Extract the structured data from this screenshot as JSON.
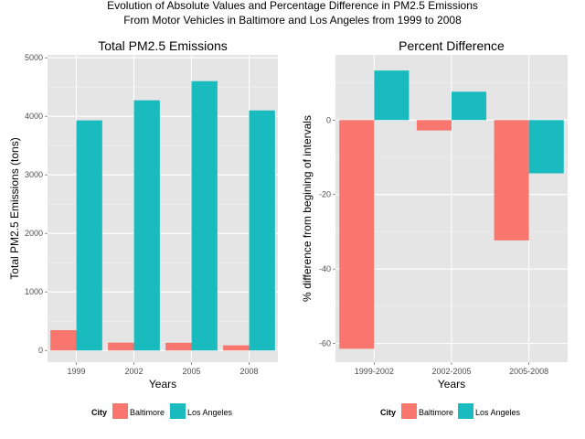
{
  "figure": {
    "title_line1": "Evolution of Absolute Values and Percentage Difference in PM2.5 Emissions",
    "title_line2": "From Motor Vehicles in Baltimore and Los Angeles from 1999 to 2008"
  },
  "colors": {
    "Baltimore": "#F8766D",
    "Los Angeles": "#19BBBE",
    "panel_bg": "#E5E5E5",
    "grid_major": "#FFFFFF",
    "grid_minor": "#F2F2F2"
  },
  "chart_data": [
    {
      "type": "bar",
      "title": "Total PM2.5 Emissions",
      "xlabel": "Years",
      "ylabel": "Total PM2.5 Emissions (tons)",
      "categories": [
        "1999",
        "2002",
        "2005",
        "2008"
      ],
      "series": [
        {
          "name": "Baltimore",
          "values": [
            347,
            134,
            131,
            88
          ]
        },
        {
          "name": "Los Angeles",
          "values": [
            3931,
            4274,
            4601,
            4101
          ]
        }
      ],
      "ylim": [
        -200,
        5050
      ],
      "yticks": [
        0,
        1000,
        2000,
        3000,
        4000,
        5000
      ],
      "grid": true,
      "legend": {
        "position": "bottom",
        "title": "City",
        "entries": [
          "Baltimore",
          "Los Angeles"
        ]
      }
    },
    {
      "type": "bar",
      "title": "Percent Difference",
      "xlabel": "Years",
      "ylabel": "% difference from begining of intervals",
      "categories": [
        "1999-2002",
        "2002-2005",
        "2005-2008"
      ],
      "series": [
        {
          "name": "Baltimore",
          "values": [
            -61.4,
            -2.8,
            -32.3
          ]
        },
        {
          "name": "Los Angeles",
          "values": [
            13.3,
            7.6,
            -14.3
          ]
        }
      ],
      "ylim": [
        -65,
        17.5
      ],
      "yticks": [
        -60,
        -40,
        -20,
        0
      ],
      "grid": true,
      "legend": {
        "position": "bottom",
        "title": "City",
        "entries": [
          "Baltimore",
          "Los Angeles"
        ]
      }
    }
  ]
}
